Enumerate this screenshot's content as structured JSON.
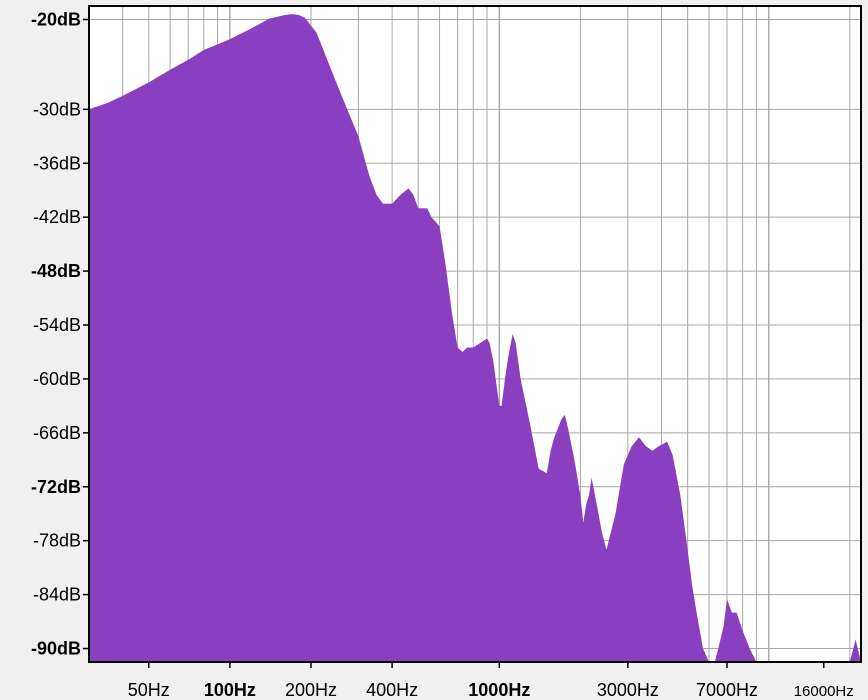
{
  "chart_data": {
    "type": "area",
    "xscale": "log",
    "grid": true,
    "xlim": [
      30,
      22000
    ],
    "ylim": [
      -91.5,
      -18.5
    ],
    "colors": {
      "fill": "#8a3fc1",
      "background": "#ffffff",
      "grid": "#a8a8a8",
      "frame": "#000000"
    },
    "y_ticks": [
      {
        "value": -20,
        "label": "-20dB",
        "bold": true
      },
      {
        "value": -30,
        "label": "-30dB",
        "bold": false
      },
      {
        "value": -36,
        "label": "-36dB",
        "bold": false
      },
      {
        "value": -42,
        "label": "-42dB",
        "bold": false
      },
      {
        "value": -48,
        "label": "-48dB",
        "bold": true
      },
      {
        "value": -54,
        "label": "-54dB",
        "bold": false
      },
      {
        "value": -60,
        "label": "-60dB",
        "bold": false
      },
      {
        "value": -66,
        "label": "-66dB",
        "bold": false
      },
      {
        "value": -72,
        "label": "-72dB",
        "bold": true
      },
      {
        "value": -78,
        "label": "-78dB",
        "bold": false
      },
      {
        "value": -84,
        "label": "-84dB",
        "bold": false
      },
      {
        "value": -90,
        "label": "-90dB",
        "bold": true
      }
    ],
    "x_ticks": [
      {
        "value": 50,
        "label": "50Hz",
        "bold": false,
        "small": false
      },
      {
        "value": 100,
        "label": "100Hz",
        "bold": true,
        "small": false
      },
      {
        "value": 200,
        "label": "200Hz",
        "bold": false,
        "small": false
      },
      {
        "value": 400,
        "label": "400Hz",
        "bold": false,
        "small": false
      },
      {
        "value": 1000,
        "label": "1000Hz",
        "bold": true,
        "small": false
      },
      {
        "value": 3000,
        "label": "3000Hz",
        "bold": false,
        "small": false
      },
      {
        "value": 7000,
        "label": "7000Hz",
        "bold": false,
        "small": false
      },
      {
        "value": 16000,
        "label": "16000Hz",
        "bold": false,
        "small": true
      }
    ],
    "x": [
      30,
      35,
      40,
      50,
      60,
      70,
      80,
      100,
      120,
      140,
      160,
      170,
      180,
      190,
      210,
      230,
      260,
      300,
      330,
      350,
      370,
      400,
      430,
      460,
      480,
      500,
      520,
      540,
      560,
      600,
      630,
      670,
      700,
      730,
      760,
      800,
      850,
      900,
      920,
      950,
      980,
      1000,
      1020,
      1050,
      1080,
      1120,
      1150,
      1200,
      1300,
      1400,
      1500,
      1550,
      1600,
      1650,
      1700,
      1750,
      1800,
      1900,
      2000,
      2050,
      2100,
      2150,
      2200,
      2300,
      2400,
      2500,
      2700,
      2900,
      3100,
      3300,
      3500,
      3700,
      3900,
      4200,
      4400,
      4700,
      5000,
      5200,
      5400,
      5700,
      6000,
      6300,
      6500,
      6800,
      7000,
      7300,
      7600,
      8000,
      8500,
      9000,
      10000,
      12000,
      15000,
      18000,
      20000,
      21000,
      22000
    ],
    "values": [
      -30,
      -29.3,
      -28.5,
      -27,
      -25.6,
      -24.5,
      -23.4,
      -22.2,
      -21,
      -19.9,
      -19.5,
      -19.4,
      -19.5,
      -19.8,
      -21.5,
      -24.5,
      -28.5,
      -33,
      -37.5,
      -39.5,
      -40.5,
      -40.5,
      -39.5,
      -38.8,
      -39.5,
      -41,
      -41,
      -41,
      -42,
      -43,
      -47,
      -53,
      -56.5,
      -57,
      -56.5,
      -56.5,
      -56,
      -55.5,
      -56,
      -58,
      -61,
      -63,
      -63,
      -60,
      -57.5,
      -55,
      -56,
      -60,
      -65,
      -70,
      -70.5,
      -68,
      -66.5,
      -65.5,
      -64.5,
      -64,
      -65.5,
      -69,
      -73,
      -76,
      -74,
      -73,
      -71,
      -74,
      -77,
      -79,
      -75,
      -69.5,
      -67.5,
      -66.5,
      -67.5,
      -68,
      -67.5,
      -67,
      -68.5,
      -73,
      -79,
      -83,
      -86,
      -90,
      -93,
      -93,
      -90,
      -87.5,
      -84.5,
      -86,
      -86,
      -88,
      -90,
      -93,
      -93,
      -93,
      -93,
      -93,
      -93,
      -89,
      -93
    ]
  }
}
